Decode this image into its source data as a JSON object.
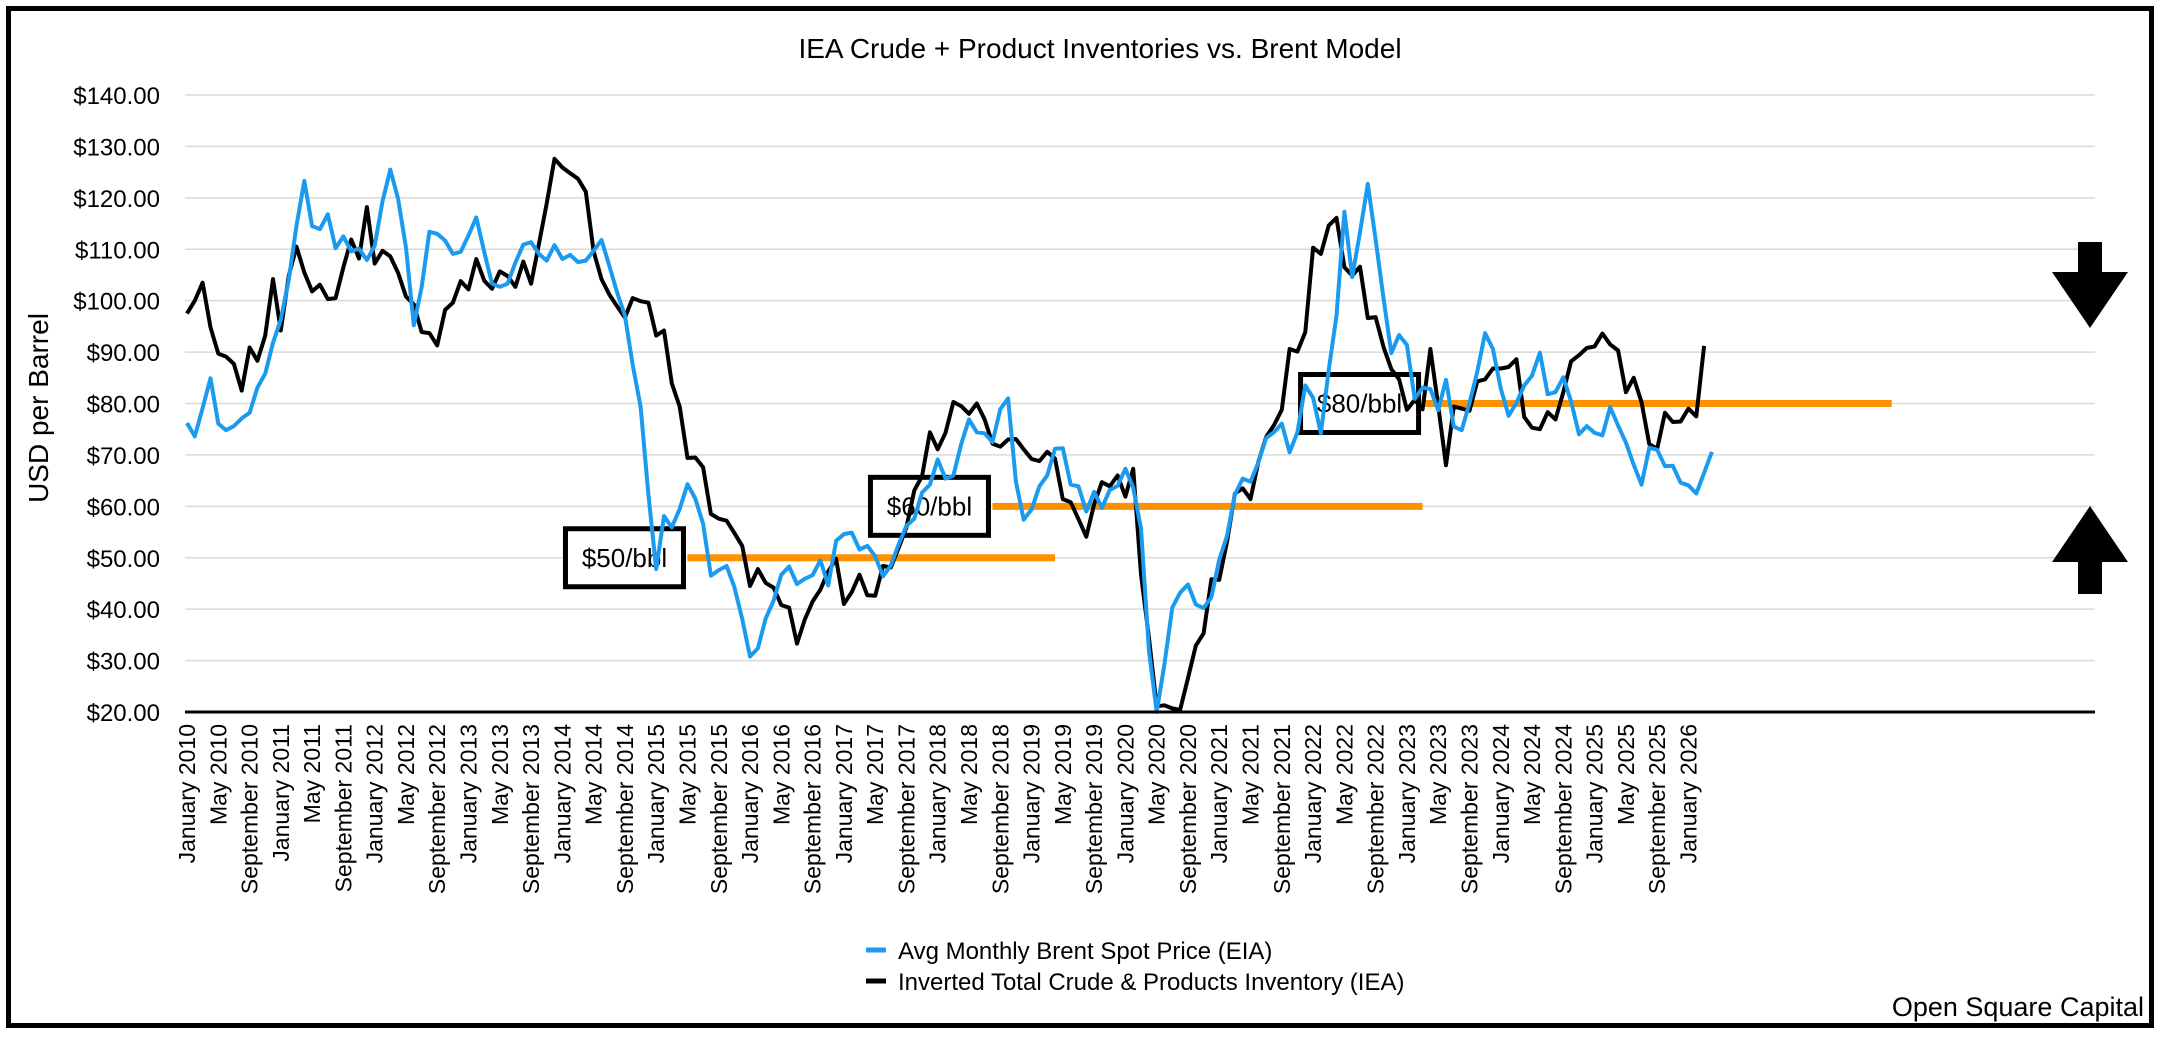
{
  "chart_data": {
    "type": "line",
    "title": "IEA Crude + Product Inventories vs. Brent Model",
    "ylabel": "USD per Barrel",
    "xlabel": "",
    "ylim": [
      20,
      140
    ],
    "yticks": [
      "$20.00",
      "$30.00",
      "$40.00",
      "$50.00",
      "$60.00",
      "$70.00",
      "$80.00",
      "$90.00",
      "$100.00",
      "$110.00",
      "$120.00",
      "$130.00",
      "$140.00"
    ],
    "grid": true,
    "legend_position": "bottom-center",
    "start_month": "January 2010",
    "xtick_labels": [
      "January 2010",
      "May 2010",
      "September 2010",
      "January 2011",
      "May 2011",
      "September 2011",
      "January 2012",
      "May 2012",
      "September 2012",
      "January 2013",
      "May 2013",
      "September 2013",
      "January 2014",
      "May 2014",
      "September 2014",
      "January 2015",
      "May 2015",
      "September 2015",
      "January 2016",
      "May 2016",
      "September 2016",
      "January 2017",
      "May 2017",
      "September 2017",
      "January 2018",
      "May 2018",
      "September 2018",
      "January 2019",
      "May 2019",
      "September 2019",
      "January 2020",
      "May 2020",
      "September 2020",
      "January 2021",
      "May 2021",
      "September 2021",
      "January 2022",
      "May 2022",
      "September 2022",
      "January 2023",
      "May 2023",
      "September 2023",
      "January 2024",
      "May 2024",
      "September 2024",
      "January 2025",
      "May 2025",
      "September 2025",
      "January 2026"
    ],
    "series": [
      {
        "name": "Avg Monthly Brent Spot Price (EIA)",
        "color": "#1a9bf0",
        "values": [
          76.2,
          73.6,
          79.1,
          84.9,
          76.1,
          74.8,
          75.6,
          77.1,
          78.2,
          83.1,
          85.8,
          91.8,
          96.3,
          104.0,
          114.6,
          123.3,
          114.5,
          113.9,
          116.8,
          110.2,
          112.5,
          109.6,
          110.1,
          107.9,
          110.7,
          119.3,
          125.5,
          119.8,
          110.3,
          95.2,
          102.6,
          113.4,
          113.0,
          111.7,
          109.1,
          109.5,
          112.7,
          116.2,
          109.5,
          103.3,
          102.7,
          103.3,
          107.4,
          110.9,
          111.4,
          109.1,
          107.8,
          110.8,
          108.1,
          108.9,
          107.5,
          107.8,
          109.7,
          111.8,
          106.8,
          101.6,
          97.1,
          87.5,
          79.4,
          62.3,
          47.8,
          58.1,
          55.9,
          59.5,
          64.3,
          61.5,
          56.6,
          46.5,
          47.6,
          48.4,
          44.3,
          38.1,
          30.8,
          32.4,
          38.2,
          41.6,
          46.7,
          48.3,
          44.9,
          45.9,
          46.6,
          49.5,
          44.6,
          53.3,
          54.6,
          54.9,
          51.6,
          52.3,
          50.3,
          46.4,
          48.5,
          52.6,
          56.2,
          57.6,
          62.7,
          64.2,
          69.1,
          65.4,
          66.0,
          72.1,
          76.9,
          74.4,
          74.2,
          72.5,
          78.9,
          81.0,
          64.8,
          57.4,
          59.4,
          63.9,
          66.0,
          71.2,
          71.3,
          64.2,
          63.9,
          59.0,
          62.8,
          59.7,
          63.2,
          64.0,
          67.3,
          63.6,
          55.7,
          32.0,
          18.4,
          29.4,
          40.3,
          43.2,
          44.8,
          40.9,
          40.2,
          42.3,
          49.6,
          54.3,
          62.3,
          65.4,
          64.8,
          68.5,
          73.3,
          74.4,
          76.1,
          70.5,
          74.4,
          83.5,
          81.1,
          74.2,
          86.5,
          97.1,
          117.3,
          104.6,
          113.3,
          122.7,
          111.9,
          100.5,
          89.8,
          93.3,
          91.4,
          80.9,
          83.1,
          82.8,
          78.7,
          84.6,
          75.5,
          74.8,
          80.1,
          86.2,
          93.7,
          90.6,
          82.9,
          77.6,
          80.1,
          83.5,
          85.4,
          89.9,
          81.8,
          82.2,
          85.1,
          80.4,
          74.0,
          75.6,
          74.3,
          73.8,
          79.3,
          75.7,
          72.4,
          68.1,
          64.2,
          71.4,
          71.0,
          67.8,
          67.9,
          64.6,
          64.1,
          62.5,
          66.5,
          70.6
        ]
      },
      {
        "name": "Inverted Total Crude & Products Inventory (IEA)",
        "color": "#000000",
        "values": [
          97.5,
          100.0,
          103.5,
          94.8,
          89.7,
          89.1,
          87.7,
          82.5,
          90.9,
          88.3,
          93.2,
          104.2,
          94.2,
          104.8,
          110.5,
          105.5,
          101.8,
          103.1,
          100.3,
          100.5,
          106.5,
          111.9,
          108.2,
          118.2,
          107.2,
          109.7,
          108.6,
          105.4,
          100.8,
          99.3,
          93.9,
          93.7,
          91.3,
          98.2,
          99.6,
          103.8,
          102.2,
          108.1,
          103.9,
          102.3,
          105.7,
          104.8,
          102.7,
          107.6,
          103.3,
          111.0,
          118.9,
          127.6,
          125.9,
          124.8,
          123.7,
          121.2,
          109.6,
          104.2,
          101.2,
          98.9,
          96.7,
          100.5,
          99.9,
          99.6,
          93.2,
          94.2,
          83.9,
          79.4,
          69.4,
          69.5,
          67.6,
          58.5,
          57.6,
          57.2,
          54.8,
          52.3,
          44.5,
          47.8,
          45.1,
          44.2,
          40.8,
          40.3,
          33.3,
          38.0,
          41.5,
          43.8,
          47.3,
          49.8,
          41.0,
          43.3,
          46.7,
          42.7,
          42.6,
          48.4,
          48.1,
          51.9,
          55.9,
          63.1,
          65.9,
          74.4,
          71.1,
          74.3,
          80.3,
          79.5,
          78.0,
          80.0,
          76.9,
          72.2,
          71.6,
          73.0,
          73.1,
          71.1,
          69.2,
          68.8,
          70.6,
          69.3,
          61.4,
          60.8,
          57.5,
          54.1,
          60.4,
          64.7,
          63.9,
          66.0,
          61.9,
          67.3,
          46.8,
          34.5,
          21.1,
          21.3,
          20.7,
          20.4,
          26.6,
          32.9,
          35.3,
          45.8,
          45.7,
          53.2,
          62.5,
          63.5,
          61.4,
          68.6,
          73.5,
          75.8,
          78.8,
          90.6,
          90.1,
          93.9,
          110.3,
          109.1,
          114.6,
          116.1,
          106.5,
          104.9,
          106.6,
          96.6,
          96.8,
          91.0,
          86.7,
          84.7,
          78.8,
          80.7,
          78.9,
          90.6,
          79.6,
          68.0,
          79.4,
          79.0,
          78.6,
          84.3,
          84.7,
          86.8,
          86.8,
          87.1,
          88.6,
          77.4,
          75.3,
          75.0,
          78.3,
          76.9,
          82.2,
          88.2,
          89.4,
          90.8,
          91.1,
          93.6,
          91.5,
          90.3,
          82.2,
          85.0,
          80.3,
          72.1,
          71.2,
          78.2,
          76.4,
          76.5,
          79.0,
          77.5,
          91.2
        ]
      }
    ],
    "reference_lines": [
      {
        "label": "$50/bbl",
        "value": 50,
        "from_index": 64,
        "to_index": 111,
        "color": "#ff9000"
      },
      {
        "label": "$60/bbl",
        "value": 60,
        "from_index": 103,
        "to_index": 158,
        "color": "#ff9000"
      },
      {
        "label": "$80/bbl",
        "value": 80,
        "from_index": 158,
        "to_index": 218,
        "color": "#ff9000"
      }
    ],
    "arrows": [
      {
        "name": "down-arrow",
        "direction": "down"
      },
      {
        "name": "up-arrow",
        "direction": "up"
      }
    ]
  },
  "footer": {
    "credit": "Open Square Capital"
  }
}
